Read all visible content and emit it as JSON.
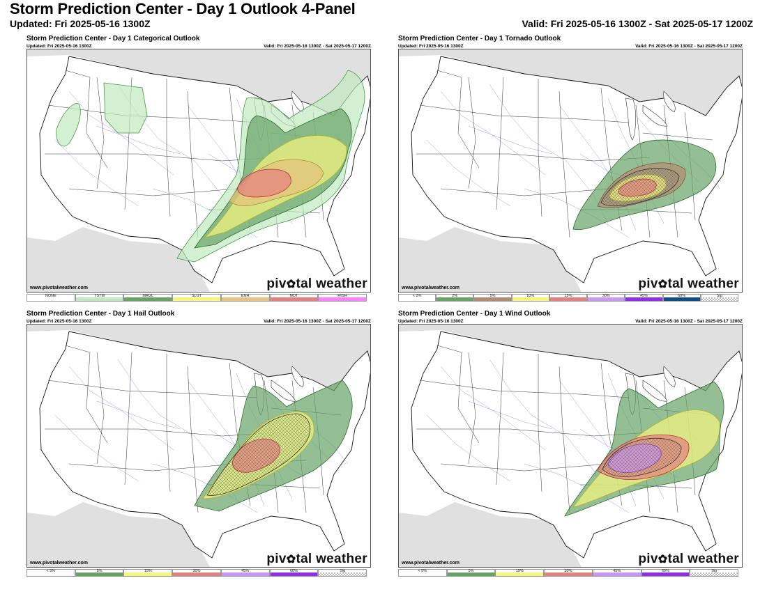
{
  "header": {
    "title": "Storm Prediction Center - Day 1 Outlook 4-Panel",
    "updated": "Updated: Fri 2025-05-16 1300Z",
    "valid": "Valid: Fri 2025-05-16 1300Z - Sat 2025-05-17 1200Z"
  },
  "panels": [
    {
      "title": "Storm Prediction Center - Day 1 Categorical Outlook",
      "updated": "Updated: Fri 2025-05-16 1300Z",
      "valid": "Valid: Fri 2025-05-16 1300Z - Sat 2025-05-17 1200Z",
      "credit": "www.pivotalweather.com",
      "logo_left": "piv",
      "logo_right": "tal weather",
      "legend": [
        {
          "label": "NONE",
          "color": "#ffffff"
        },
        {
          "label": "TSTM",
          "color": "#c1e9c1"
        },
        {
          "label": "MRGL",
          "color": "#66a366"
        },
        {
          "label": "SLGT",
          "color": "#f6f67f"
        },
        {
          "label": "ENH",
          "color": "#e6c27e"
        },
        {
          "label": "MDT",
          "color": "#e67f7f"
        },
        {
          "label": "HIGH",
          "color": "#ff7fff"
        }
      ]
    },
    {
      "title": "Storm Prediction Center - Day 1 Tornado Outlook",
      "updated": "Updated: Fri 2025-05-16 1300Z",
      "valid": "Valid: Fri 2025-05-16 1300Z - Sat 2025-05-17 1200Z",
      "credit": "www.pivotalweather.com",
      "logo_left": "piv",
      "logo_right": "tal weather",
      "legend": [
        {
          "label": "< 2%",
          "color": "#ffffff"
        },
        {
          "label": "2%",
          "color": "#66a366"
        },
        {
          "label": "5%",
          "color": "#b38b73"
        },
        {
          "label": "10%",
          "color": "#f6f67f"
        },
        {
          "label": "15%",
          "color": "#e67f7f"
        },
        {
          "label": "30%",
          "color": "#c896f7"
        },
        {
          "label": "45%",
          "color": "#912cee"
        },
        {
          "label": "60%",
          "color": "#104e8b"
        },
        {
          "label": "Sig",
          "color": "checker"
        }
      ]
    },
    {
      "title": "Storm Prediction Center - Day 1 Hail Outlook",
      "updated": "Updated: Fri 2025-05-16 1300Z",
      "valid": "Valid: Fri 2025-05-16 1300Z - Sat 2025-05-17 1200Z",
      "credit": "www.pivotalweather.com",
      "logo_left": "piv",
      "logo_right": "tal weather",
      "legend": [
        {
          "label": "< 5%",
          "color": "#ffffff"
        },
        {
          "label": "5%",
          "color": "#66a366"
        },
        {
          "label": "15%",
          "color": "#f6f67f"
        },
        {
          "label": "30%",
          "color": "#e67f7f"
        },
        {
          "label": "45%",
          "color": "#c896f7"
        },
        {
          "label": "60%",
          "color": "#912cee"
        },
        {
          "label": "Sig",
          "color": "checker"
        }
      ]
    },
    {
      "title": "Storm Prediction Center - Day 1 Wind Outlook",
      "updated": "Updated: Fri 2025-05-16 1300Z",
      "valid": "Valid: Fri 2025-05-16 1300Z - Sat 2025-05-17 1200Z",
      "credit": "www.pivotalweather.com",
      "logo_left": "piv",
      "logo_right": "tal weather",
      "legend": [
        {
          "label": "< 5%",
          "color": "#ffffff"
        },
        {
          "label": "5%",
          "color": "#66a366"
        },
        {
          "label": "15%",
          "color": "#f6f67f"
        },
        {
          "label": "30%",
          "color": "#e67f7f"
        },
        {
          "label": "45%",
          "color": "#c896f7"
        },
        {
          "label": "60%",
          "color": "#912cee"
        },
        {
          "label": "Sig",
          "color": "checker"
        }
      ]
    }
  ]
}
